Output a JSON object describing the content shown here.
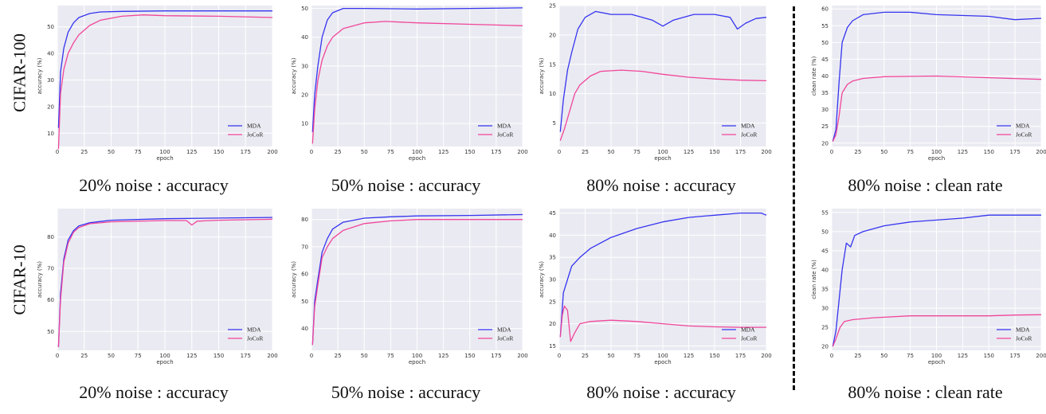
{
  "row_labels": [
    "CIFAR-100",
    "CIFAR-10"
  ],
  "colors": {
    "MDA": "#3434f0",
    "JoCoR": "#f0469a",
    "plot_bg": "#eaeaf2"
  },
  "chart_data": [
    {
      "type": "line",
      "caption": "20% noise : accuracy",
      "xlabel": "epoch",
      "ylabel": "accuracy (%)",
      "xlim": [
        0,
        200
      ],
      "ylim": [
        5,
        58
      ],
      "xticks": [
        0,
        25,
        50,
        75,
        100,
        125,
        150,
        175,
        200
      ],
      "yticks": [
        10,
        20,
        30,
        40,
        50
      ],
      "legend": "bottom-right",
      "series": [
        {
          "name": "MDA",
          "points": [
            [
              1,
              12
            ],
            [
              3,
              33
            ],
            [
              6,
              42
            ],
            [
              10,
              48
            ],
            [
              15,
              51.5
            ],
            [
              20,
              53.5
            ],
            [
              30,
              55
            ],
            [
              40,
              55.6
            ],
            [
              60,
              55.8
            ],
            [
              100,
              56
            ],
            [
              150,
              56
            ],
            [
              200,
              56
            ]
          ]
        },
        {
          "name": "JoCoR",
          "points": [
            [
              1,
              4
            ],
            [
              3,
              25
            ],
            [
              6,
              34
            ],
            [
              10,
              40
            ],
            [
              15,
              44
            ],
            [
              20,
              47
            ],
            [
              30,
              50.5
            ],
            [
              40,
              52.5
            ],
            [
              60,
              54
            ],
            [
              80,
              54.5
            ],
            [
              100,
              54.2
            ],
            [
              150,
              54
            ],
            [
              200,
              53.5
            ]
          ]
        }
      ]
    },
    {
      "type": "line",
      "caption": "50% noise : accuracy",
      "xlabel": "epoch",
      "ylabel": "accuracy (%)",
      "xlim": [
        0,
        200
      ],
      "ylim": [
        2,
        51
      ],
      "xticks": [
        0,
        25,
        50,
        75,
        100,
        125,
        150,
        175,
        200
      ],
      "yticks": [
        10,
        20,
        30,
        40,
        50
      ],
      "legend": "bottom-right",
      "series": [
        {
          "name": "MDA",
          "points": [
            [
              1,
              7
            ],
            [
              3,
              20
            ],
            [
              6,
              30
            ],
            [
              10,
              40
            ],
            [
              15,
              46
            ],
            [
              20,
              48.5
            ],
            [
              30,
              50
            ],
            [
              50,
              50
            ],
            [
              100,
              49.8
            ],
            [
              150,
              50
            ],
            [
              200,
              50.2
            ]
          ]
        },
        {
          "name": "JoCoR",
          "points": [
            [
              1,
              3
            ],
            [
              3,
              15
            ],
            [
              6,
              25
            ],
            [
              10,
              32
            ],
            [
              15,
              37
            ],
            [
              20,
              40
            ],
            [
              30,
              43
            ],
            [
              50,
              45
            ],
            [
              70,
              45.5
            ],
            [
              100,
              45
            ],
            [
              150,
              44.5
            ],
            [
              200,
              44
            ]
          ]
        }
      ]
    },
    {
      "type": "line",
      "caption": "80% noise : accuracy",
      "xlabel": "epoch",
      "ylabel": "accuracy (%)",
      "xlim": [
        0,
        200
      ],
      "ylim": [
        1,
        25
      ],
      "xticks": [
        0,
        25,
        50,
        75,
        100,
        125,
        150,
        175,
        200
      ],
      "yticks": [
        5,
        10,
        15,
        20,
        25
      ],
      "legend": "bottom-right",
      "series": [
        {
          "name": "MDA",
          "points": [
            [
              1,
              3.5
            ],
            [
              4,
              9
            ],
            [
              8,
              14
            ],
            [
              12,
              17
            ],
            [
              18,
              21
            ],
            [
              25,
              23
            ],
            [
              35,
              24
            ],
            [
              50,
              23.5
            ],
            [
              70,
              23.5
            ],
            [
              90,
              22.5
            ],
            [
              100,
              21.5
            ],
            [
              110,
              22.5
            ],
            [
              130,
              23.5
            ],
            [
              150,
              23.5
            ],
            [
              165,
              23
            ],
            [
              172,
              21
            ],
            [
              180,
              22
            ],
            [
              190,
              22.8
            ],
            [
              200,
              23
            ]
          ]
        },
        {
          "name": "JoCoR",
          "points": [
            [
              1,
              2
            ],
            [
              5,
              4
            ],
            [
              10,
              7
            ],
            [
              15,
              10
            ],
            [
              20,
              11.5
            ],
            [
              30,
              13
            ],
            [
              40,
              13.8
            ],
            [
              60,
              14
            ],
            [
              80,
              13.8
            ],
            [
              100,
              13.3
            ],
            [
              125,
              12.8
            ],
            [
              150,
              12.5
            ],
            [
              175,
              12.3
            ],
            [
              200,
              12.2
            ]
          ]
        }
      ]
    },
    {
      "type": "line",
      "caption": "80% noise : clean rate",
      "xlabel": "epoch",
      "ylabel": "clean rate (%)",
      "xlim": [
        0,
        200
      ],
      "ylim": [
        19,
        61
      ],
      "xticks": [
        0,
        25,
        50,
        75,
        100,
        125,
        150,
        175,
        200
      ],
      "yticks": [
        20,
        25,
        30,
        35,
        40,
        45,
        50,
        55,
        60
      ],
      "legend": "bottom-right",
      "series": [
        {
          "name": "MDA",
          "points": [
            [
              1,
              20.5
            ],
            [
              4,
              24
            ],
            [
              7,
              38
            ],
            [
              10,
              50
            ],
            [
              15,
              54.5
            ],
            [
              20,
              56.5
            ],
            [
              30,
              58.3
            ],
            [
              50,
              59
            ],
            [
              75,
              59
            ],
            [
              100,
              58.3
            ],
            [
              150,
              57.8
            ],
            [
              175,
              56.8
            ],
            [
              200,
              57.2
            ]
          ]
        },
        {
          "name": "JoCoR",
          "points": [
            [
              1,
              20.5
            ],
            [
              4,
              22.5
            ],
            [
              7,
              28
            ],
            [
              10,
              35
            ],
            [
              15,
              37.5
            ],
            [
              20,
              38.5
            ],
            [
              30,
              39.3
            ],
            [
              50,
              39.8
            ],
            [
              100,
              40
            ],
            [
              150,
              39.5
            ],
            [
              200,
              39
            ]
          ]
        }
      ]
    },
    {
      "type": "line",
      "caption": "20% noise : accuracy",
      "xlabel": "epoch",
      "ylabel": "accuracy (%)",
      "xlim": [
        0,
        200
      ],
      "ylim": [
        44,
        89
      ],
      "xticks": [
        0,
        25,
        50,
        75,
        100,
        125,
        150,
        175,
        200
      ],
      "yticks": [
        50,
        60,
        70,
        80
      ],
      "legend": "bottom-right",
      "series": [
        {
          "name": "MDA",
          "points": [
            [
              1,
              45
            ],
            [
              3,
              62
            ],
            [
              6,
              73
            ],
            [
              10,
              79
            ],
            [
              15,
              82
            ],
            [
              20,
              83.5
            ],
            [
              30,
              84.5
            ],
            [
              50,
              85.3
            ],
            [
              100,
              85.8
            ],
            [
              150,
              86
            ],
            [
              200,
              86.2
            ]
          ]
        },
        {
          "name": "JoCoR",
          "points": [
            [
              1,
              45
            ],
            [
              3,
              60
            ],
            [
              6,
              72
            ],
            [
              10,
              78
            ],
            [
              15,
              81.5
            ],
            [
              20,
              83
            ],
            [
              30,
              84.2
            ],
            [
              50,
              84.8
            ],
            [
              100,
              85.2
            ],
            [
              120,
              85.2
            ],
            [
              125,
              83.8
            ],
            [
              130,
              85
            ],
            [
              150,
              85.3
            ],
            [
              200,
              85.6
            ]
          ]
        }
      ]
    },
    {
      "type": "line",
      "caption": "50% noise : accuracy",
      "xlabel": "epoch",
      "ylabel": "accuracy (%)",
      "xlim": [
        0,
        200
      ],
      "ylim": [
        32,
        84
      ],
      "xticks": [
        0,
        25,
        50,
        75,
        100,
        125,
        150,
        175,
        200
      ],
      "yticks": [
        40,
        50,
        60,
        70,
        80
      ],
      "legend": "bottom-right",
      "series": [
        {
          "name": "MDA",
          "points": [
            [
              1,
              34
            ],
            [
              3,
              50
            ],
            [
              6,
              58
            ],
            [
              10,
              68
            ],
            [
              15,
              73
            ],
            [
              20,
              76.5
            ],
            [
              30,
              79
            ],
            [
              50,
              80.5
            ],
            [
              75,
              81
            ],
            [
              100,
              81.3
            ],
            [
              150,
              81.5
            ],
            [
              200,
              81.8
            ]
          ]
        },
        {
          "name": "JoCoR",
          "points": [
            [
              1,
              34
            ],
            [
              3,
              48
            ],
            [
              6,
              56
            ],
            [
              10,
              66
            ],
            [
              15,
              70
            ],
            [
              20,
              73
            ],
            [
              30,
              76
            ],
            [
              50,
              78.5
            ],
            [
              75,
              79.5
            ],
            [
              100,
              80
            ],
            [
              150,
              80
            ],
            [
              200,
              80
            ]
          ]
        }
      ]
    },
    {
      "type": "line",
      "caption": "80% noise : accuracy",
      "xlabel": "epoch",
      "ylabel": "accuracy (%)",
      "xlim": [
        0,
        200
      ],
      "ylim": [
        14,
        46
      ],
      "xticks": [
        0,
        25,
        50,
        75,
        100,
        125,
        150,
        175,
        200
      ],
      "yticks": [
        15,
        20,
        25,
        30,
        35,
        40,
        45
      ],
      "legend": "bottom-right",
      "series": [
        {
          "name": "MDA",
          "points": [
            [
              1,
              17
            ],
            [
              4,
              27
            ],
            [
              8,
              30
            ],
            [
              12,
              33
            ],
            [
              20,
              35
            ],
            [
              30,
              37
            ],
            [
              50,
              39.5
            ],
            [
              75,
              41.5
            ],
            [
              100,
              43
            ],
            [
              125,
              44
            ],
            [
              150,
              44.5
            ],
            [
              175,
              45
            ],
            [
              195,
              45
            ],
            [
              200,
              44.5
            ]
          ]
        },
        {
          "name": "JoCoR",
          "points": [
            [
              1,
              17
            ],
            [
              3,
              22
            ],
            [
              5,
              24
            ],
            [
              8,
              23
            ],
            [
              11,
              16
            ],
            [
              15,
              18
            ],
            [
              20,
              20
            ],
            [
              30,
              20.5
            ],
            [
              50,
              20.8
            ],
            [
              75,
              20.5
            ],
            [
              100,
              20
            ],
            [
              125,
              19.5
            ],
            [
              150,
              19.3
            ],
            [
              175,
              19.2
            ],
            [
              200,
              19.2
            ]
          ]
        }
      ]
    },
    {
      "type": "line",
      "caption": "80% noise : clean rate",
      "xlabel": "epoch",
      "ylabel": "clean rate (%)",
      "xlim": [
        0,
        200
      ],
      "ylim": [
        19,
        56
      ],
      "xticks": [
        0,
        25,
        50,
        75,
        100,
        125,
        150,
        175,
        200
      ],
      "yticks": [
        20,
        25,
        30,
        35,
        40,
        45,
        50,
        55
      ],
      "legend": "bottom-right",
      "series": [
        {
          "name": "MDA",
          "points": [
            [
              1,
              20
            ],
            [
              4,
              24
            ],
            [
              7,
              32
            ],
            [
              10,
              40
            ],
            [
              14,
              47
            ],
            [
              18,
              46
            ],
            [
              22,
              49
            ],
            [
              30,
              50
            ],
            [
              50,
              51.5
            ],
            [
              75,
              52.5
            ],
            [
              100,
              53
            ],
            [
              125,
              53.5
            ],
            [
              150,
              54.3
            ],
            [
              175,
              54.3
            ],
            [
              200,
              54.3
            ]
          ]
        },
        {
          "name": "JoCoR",
          "points": [
            [
              1,
              20
            ],
            [
              4,
              22
            ],
            [
              8,
              25
            ],
            [
              12,
              26.5
            ],
            [
              20,
              27
            ],
            [
              40,
              27.5
            ],
            [
              75,
              28
            ],
            [
              100,
              28
            ],
            [
              150,
              28
            ],
            [
              175,
              28.2
            ],
            [
              200,
              28.3
            ]
          ]
        }
      ]
    }
  ]
}
